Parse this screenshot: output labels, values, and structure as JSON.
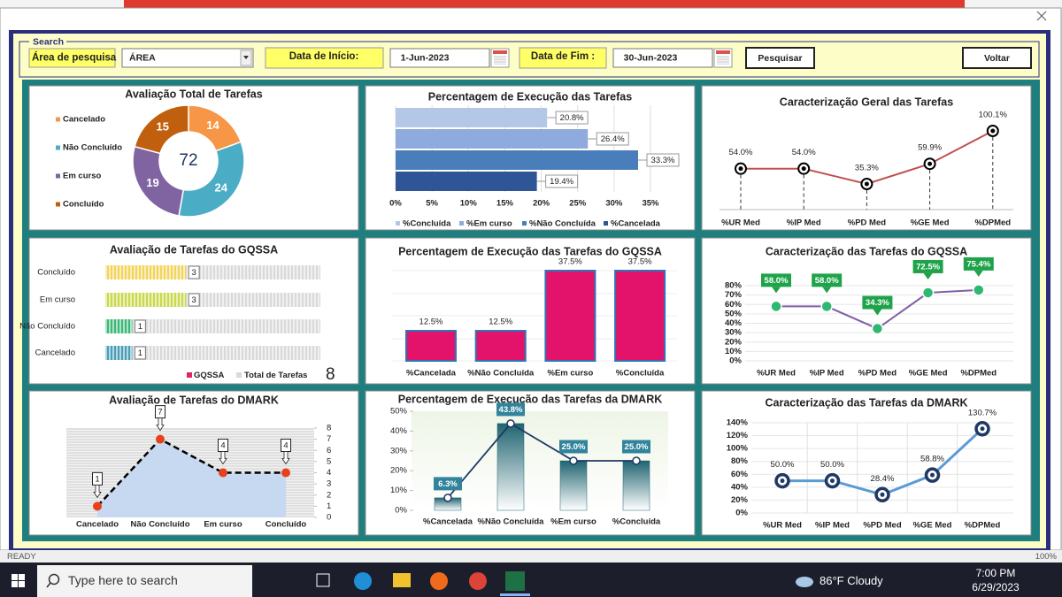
{
  "window": {
    "status": "READY",
    "zoom": "100%"
  },
  "search": {
    "legend": "Search",
    "area_label": "Área de pesquisa",
    "area_value": "ÁREA",
    "start_label": "Data de Início:",
    "start_date": "1-Jun-2023",
    "end_label": "Data de Fim :",
    "end_date": "30-Jun-2023",
    "search_button": "Pesquisar",
    "back_button": "Voltar"
  },
  "taskbar": {
    "search_placeholder": "Type here to search",
    "weather": "86°F  Cloudy",
    "time": "7:00 PM",
    "date": "6/29/2023"
  },
  "chart_data": [
    {
      "type": "donut",
      "title": "Avaliação Total de Tarefas",
      "categories": [
        "Cancelado",
        "Não Concluído",
        "Em curso",
        "Concluído"
      ],
      "values": [
        14,
        24,
        19,
        15
      ],
      "colors": [
        "#f79646",
        "#4bacc6",
        "#8064a2",
        "#c0600e"
      ],
      "total": 72
    },
    {
      "type": "hbar",
      "title": "Percentagem de Execução das Tarefas",
      "categories": [
        "%Concluída",
        "%Em curso",
        "%Não Concluída",
        "%Cancelada"
      ],
      "values": [
        20.8,
        26.4,
        33.3,
        19.4
      ],
      "value_labels": [
        "20.8%",
        "26.4%",
        "33.3%",
        "19.4%"
      ],
      "colors": [
        "#b4c7e7",
        "#8faadc",
        "#4a7ebb",
        "#2f5597"
      ],
      "xlim": [
        0,
        35
      ],
      "xticks": [
        {
          "value": 0,
          "label": "0%"
        },
        {
          "value": 5,
          "label": "5%"
        },
        {
          "value": 10,
          "label": "10%"
        },
        {
          "value": 15,
          "label": "15%"
        },
        {
          "value": 20,
          "label": "20%"
        },
        {
          "value": 25,
          "label": "25%"
        },
        {
          "value": 30,
          "label": "30%"
        },
        {
          "value": 35,
          "label": "35%"
        }
      ],
      "grid": true
    },
    {
      "type": "line",
      "title": "Caracterização Geral das Tarefas",
      "categories": [
        "%UR Med",
        "%IP Med",
        "%PD Med",
        "%GE Med",
        "%DPMed"
      ],
      "values": [
        54.0,
        54.0,
        35.3,
        59.9,
        100.1
      ],
      "value_labels": [
        "54.0%",
        "54.0%",
        "35.3%",
        "59.9%",
        "100.1%"
      ],
      "line_color": "#c0504d",
      "marker_color": "#000000",
      "marker": "ring",
      "label_style": "plain",
      "drop_lines": true
    },
    {
      "type": "pictograph",
      "title": "Avaliação de Tarefas do GQSSA",
      "categories": [
        "Concluído",
        "Em curso",
        "Não Concluído",
        "Cancelado"
      ],
      "series": [
        {
          "name": "GQSSA",
          "color": "#e0245e",
          "values": [
            3,
            3,
            1,
            1
          ]
        }
      ],
      "bar_colors": [
        "#f2d45c",
        "#c9d94e",
        "#3cb878",
        "#4a9fb5"
      ],
      "total_name": "Total de Tarefas",
      "total": 8,
      "total_color": "#d9d9d9"
    },
    {
      "type": "bar",
      "title": "Percentagem de Execução das Tarefas do GQSSA",
      "categories": [
        "%Cancelada",
        "%Não Concluída",
        "%Em curso",
        "%Concluída"
      ],
      "values": [
        12.5,
        12.5,
        37.5,
        37.5
      ],
      "value_labels": [
        "12.5%",
        "12.5%",
        "37.5%",
        "37.5%"
      ],
      "color": "#e3136b",
      "border_color": "#2e75b6"
    },
    {
      "type": "line",
      "title": "Caracterização das Tarefas do GQSSA",
      "categories": [
        "%UR Med",
        "%IP Med",
        "%PD Med",
        "%GE Med",
        "%DPMed"
      ],
      "values": [
        58.0,
        58.0,
        34.3,
        72.5,
        75.4
      ],
      "value_labels": [
        "58.0%",
        "58.0%",
        "34.3%",
        "72.5%",
        "75.4%"
      ],
      "ylim": [
        0,
        80
      ],
      "yticks": [
        {
          "value": 0,
          "label": "0%"
        },
        {
          "value": 10,
          "label": "10%"
        },
        {
          "value": 20,
          "label": "20%"
        },
        {
          "value": 30,
          "label": "30%"
        },
        {
          "value": 40,
          "label": "40%"
        },
        {
          "value": 50,
          "label": "50%"
        },
        {
          "value": 60,
          "label": "60%"
        },
        {
          "value": 70,
          "label": "70%"
        },
        {
          "value": 80,
          "label": "80%"
        }
      ],
      "line_color": "#7f5fa8",
      "marker_color": "#2eb872",
      "marker": "dot",
      "label_style": "box",
      "label_color": "#1fa34a"
    },
    {
      "type": "area",
      "title": "Avaliação de Tarefas do  DMARK",
      "categories": [
        "Cancelado",
        "Não Concluído",
        "Em curso",
        "Concluído"
      ],
      "values": [
        1,
        7,
        4,
        4
      ],
      "ylim": [
        0,
        8
      ],
      "yticks": [
        0,
        1,
        2,
        3,
        4,
        5,
        6,
        7,
        8
      ],
      "color": "#c6d9f1",
      "line_color": "#000000",
      "marker_color": "#e8401c"
    },
    {
      "type": "combo",
      "title": "Percentagem de Execução das Tarefas da DMARK",
      "categories": [
        "%Cancelada",
        "%Não Concluída",
        "%Em curso",
        "%Concluída"
      ],
      "values": [
        6.3,
        43.8,
        25.0,
        25.0
      ],
      "value_labels": [
        "6.3%",
        "43.8%",
        "25.0%",
        "25.0%"
      ],
      "ylim": [
        0,
        50
      ],
      "yticks": [
        {
          "value": 0,
          "label": "0%"
        },
        {
          "value": 10,
          "label": "10%"
        },
        {
          "value": 20,
          "label": "20%"
        },
        {
          "value": 30,
          "label": "30%"
        },
        {
          "value": 40,
          "label": "40%"
        },
        {
          "value": 50,
          "label": "50%"
        }
      ],
      "color": "#1f6470",
      "line_color": "#1f3864",
      "label_color": "#31849b"
    },
    {
      "type": "line",
      "title": "Caracterização das Tarefas da DMARK",
      "categories": [
        "%UR Med",
        "%IP Med",
        "%PD Med",
        "%GE Med",
        "%DPMed"
      ],
      "values": [
        50.0,
        50.0,
        28.4,
        58.8,
        130.7
      ],
      "value_labels": [
        "50.0%",
        "50.0%",
        "28.4%",
        "58.8%",
        "130.7%"
      ],
      "ylim": [
        0,
        140
      ],
      "yticks": [
        {
          "value": 0,
          "label": "0%"
        },
        {
          "value": 20,
          "label": "20%"
        },
        {
          "value": 40,
          "label": "40%"
        },
        {
          "value": 60,
          "label": "60%"
        },
        {
          "value": 80,
          "label": "80%"
        },
        {
          "value": 100,
          "label": "100%"
        },
        {
          "value": 120,
          "label": "120%"
        },
        {
          "value": 140,
          "label": "140%"
        }
      ],
      "line_color": "#5b9bd5",
      "marker_color": "#1f3864",
      "marker": "ring",
      "label_style": "plain",
      "grid": true
    }
  ]
}
